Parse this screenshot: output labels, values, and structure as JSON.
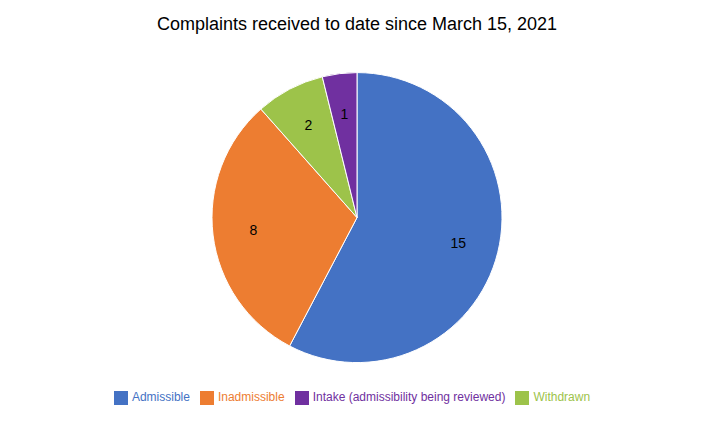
{
  "chart_data": {
    "type": "pie",
    "title": "Complaints received to date since March 15, 2021",
    "categories": [
      "Admissible",
      "Inadmissible",
      "Withdrawn",
      "Intake (admissibility being reviewed)"
    ],
    "values": [
      15,
      8,
      2,
      1
    ],
    "colors": [
      "#4472C4",
      "#ED7D31",
      "#9DC34A",
      "#7030A0"
    ],
    "data_labels": true,
    "legend": "bottom"
  }
}
